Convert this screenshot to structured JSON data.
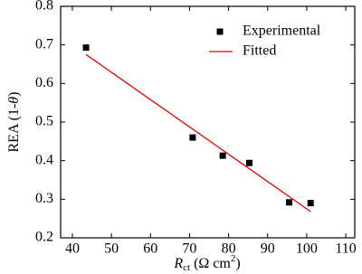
{
  "chart_data": {
    "type": "scatter",
    "xlabel": [
      "R",
      "ct",
      " (Ω cm",
      "2",
      ")"
    ],
    "ylabel": [
      "REA (1-",
      "θ",
      ")"
    ],
    "xlim": [
      37,
      112.3
    ],
    "xticks": [
      40,
      50,
      60,
      70,
      80,
      90,
      100,
      110
    ],
    "ylim": [
      0.2,
      0.8
    ],
    "yticks": [
      0.2,
      0.3,
      0.4,
      0.5,
      0.6,
      0.7,
      0.8
    ],
    "legend": "top-right",
    "series": [
      {
        "name": "Experimental",
        "mode": "markers",
        "color": "#000000",
        "x": [
          43.5,
          70.8,
          78.5,
          85.3,
          95.5,
          101
        ],
        "values": [
          0.693,
          0.46,
          0.413,
          0.394,
          0.292,
          0.29
        ]
      },
      {
        "name": "Fitted",
        "mode": "line",
        "color": "#e00000",
        "x": [
          43.5,
          101
        ],
        "values": [
          0.675,
          0.268
        ]
      }
    ]
  }
}
